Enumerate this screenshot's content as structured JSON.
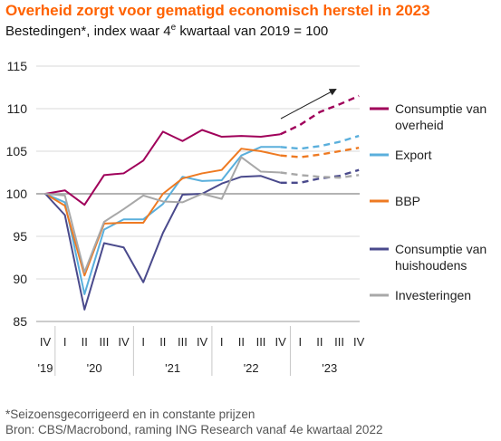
{
  "title": "Overheid zorgt voor gematigd economisch herstel in 2023",
  "subtitle": {
    "pre": "Bestedingen*, index waar 4",
    "sup": "e",
    "post": " kwartaal van 2019 = 100"
  },
  "footnotes": [
    "*Seizoensgecorrigeerd en in constante prijzen",
    "Bron: CBS/Macrobond, raming ING Research vanaf 4e kwartaal  2022"
  ],
  "chart_data": {
    "type": "line",
    "title": "Overheid zorgt voor gematigd economisch herstel in 2023",
    "ylim": [
      85,
      115
    ],
    "yticks": [
      85,
      90,
      95,
      100,
      105,
      110,
      115
    ],
    "reference_line": 100,
    "quarter_labels": [
      "IV",
      "I",
      "II",
      "III",
      "IV",
      "I",
      "II",
      "III",
      "IV",
      "I",
      "II",
      "III",
      "IV",
      "I",
      "II",
      "III",
      "IV"
    ],
    "year_labels": [
      {
        "label": "'19",
        "center": 0
      },
      {
        "label": "'20",
        "center": 2.5
      },
      {
        "label": "'21",
        "center": 6.5
      },
      {
        "label": "'22",
        "center": 10.5
      },
      {
        "label": "'23",
        "center": 14.5
      }
    ],
    "year_dividers": [
      0.5,
      4.5,
      8.5,
      12.5
    ],
    "forecast_start_index": 12,
    "series": [
      {
        "name": "Consumptie van overheid",
        "label_lines": [
          "Consumptie van",
          "overheid"
        ],
        "color": "#a0005a",
        "values": [
          100,
          100.4,
          98.7,
          102.2,
          102.4,
          103.9,
          107.3,
          106.2,
          107.5,
          106.7,
          106.8,
          106.7,
          107.0,
          108.1,
          109.6,
          110.5,
          111.5
        ]
      },
      {
        "name": "Export",
        "label_lines": [
          "Export"
        ],
        "color": "#5aafdc",
        "values": [
          100,
          99.0,
          88.2,
          95.8,
          97.0,
          97.0,
          98.8,
          102.0,
          101.5,
          101.6,
          104.5,
          105.5,
          105.5,
          105.3,
          105.6,
          106.1,
          106.8
        ]
      },
      {
        "name": "BBP",
        "label_lines": [
          "BBP"
        ],
        "color": "#ee7a22",
        "values": [
          100,
          98.6,
          90.4,
          96.5,
          96.6,
          96.6,
          100.0,
          101.8,
          102.4,
          102.8,
          105.3,
          105.0,
          104.5,
          104.3,
          104.6,
          105.0,
          105.4
        ]
      },
      {
        "name": "Consumptie van huishoudens",
        "label_lines": [
          "Consumptie van",
          "huishoudens"
        ],
        "color": "#4a4a8c",
        "values": [
          100,
          97.5,
          86.4,
          94.2,
          93.7,
          89.6,
          95.4,
          99.9,
          100.0,
          101.2,
          102.0,
          102.1,
          101.3,
          101.3,
          101.8,
          102.1,
          102.8
        ]
      },
      {
        "name": "Investeringen",
        "label_lines": [
          "Investeringen"
        ],
        "color": "#a8a8a8",
        "values": [
          100,
          99.8,
          90.8,
          96.7,
          98.2,
          99.8,
          99.1,
          99.0,
          100.0,
          99.4,
          104.3,
          102.6,
          102.5,
          102.2,
          102.0,
          101.9,
          102.2
        ]
      }
    ]
  }
}
